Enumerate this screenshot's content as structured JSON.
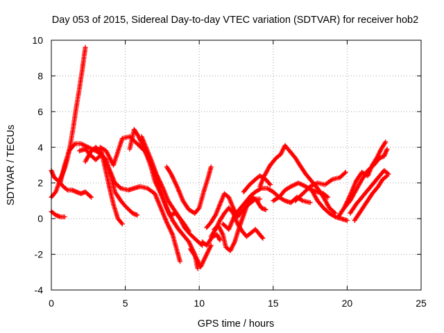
{
  "chart_data": {
    "type": "scatter",
    "title": "Day 053 of 2015, Sidereal Day-to-day VTEC variation (SDTVAR) for receiver hob2",
    "xlabel": "GPS time / hours",
    "ylabel": "SDTVAR / TECUs",
    "xlim": [
      0,
      25
    ],
    "ylim": [
      -4,
      10
    ],
    "xticks": [
      0,
      5,
      10,
      15,
      20,
      25
    ],
    "yticks": [
      -4,
      -2,
      0,
      2,
      4,
      6,
      8,
      10
    ],
    "xtick_labels": [
      "0",
      "5",
      "10",
      "15",
      "20",
      "25"
    ],
    "ytick_labels": [
      "-4",
      "-2",
      "0",
      "2",
      "4",
      "6",
      "8",
      "10"
    ],
    "grid": true,
    "marker": "+",
    "color": "#ff0000",
    "tracks": [
      [
        [
          0.0,
          1.2
        ],
        [
          0.3,
          1.5
        ],
        [
          0.6,
          2.2
        ],
        [
          0.9,
          2.8
        ],
        [
          1.1,
          3.4
        ],
        [
          1.3,
          4.2
        ],
        [
          1.5,
          5.2
        ],
        [
          1.7,
          6.3
        ],
        [
          1.9,
          7.3
        ],
        [
          2.1,
          8.4
        ],
        [
          2.3,
          9.6
        ]
      ],
      [
        [
          0.0,
          0.4
        ],
        [
          0.3,
          0.2
        ],
        [
          0.6,
          0.1
        ],
        [
          0.9,
          0.1
        ]
      ],
      [
        [
          0.0,
          2.7
        ],
        [
          0.2,
          2.3
        ],
        [
          0.5,
          2.1
        ],
        [
          0.8,
          1.8
        ],
        [
          1.1,
          1.6
        ],
        [
          1.4,
          1.6
        ],
        [
          1.7,
          1.5
        ],
        [
          2.0,
          1.4
        ],
        [
          2.3,
          1.5
        ],
        [
          2.7,
          1.2
        ]
      ],
      [
        [
          0.6,
          2.0
        ],
        [
          0.9,
          3.0
        ],
        [
          1.2,
          3.8
        ],
        [
          1.6,
          4.2
        ],
        [
          2.0,
          4.2
        ],
        [
          2.5,
          4.0
        ],
        [
          3.0,
          3.8
        ],
        [
          3.4,
          3.6
        ],
        [
          3.7,
          3.2
        ],
        [
          4.0,
          2.6
        ],
        [
          4.3,
          2.0
        ],
        [
          4.7,
          1.7
        ],
        [
          5.2,
          1.6
        ],
        [
          5.6,
          1.7
        ],
        [
          6.0,
          1.8
        ],
        [
          6.5,
          1.7
        ],
        [
          7.0,
          1.4
        ],
        [
          7.4,
          0.6
        ],
        [
          7.8,
          -0.2
        ],
        [
          8.2,
          -0.9
        ],
        [
          8.5,
          -1.8
        ],
        [
          8.7,
          -2.4
        ]
      ],
      [
        [
          1.9,
          3.8
        ],
        [
          2.3,
          3.9
        ],
        [
          2.6,
          3.6
        ],
        [
          3.0,
          3.3
        ],
        [
          3.4,
          3.6
        ],
        [
          3.7,
          3.3
        ],
        [
          4.0,
          2.5
        ],
        [
          4.3,
          1.5
        ],
        [
          4.7,
          1.0
        ],
        [
          5.0,
          0.7
        ],
        [
          5.5,
          0.3
        ],
        [
          5.8,
          0.2
        ]
      ],
      [
        [
          2.3,
          3.2
        ],
        [
          2.7,
          3.8
        ],
        [
          3.0,
          4.0
        ],
        [
          3.4,
          3.7
        ],
        [
          3.7,
          2.6
        ],
        [
          4.0,
          1.5
        ],
        [
          4.2,
          0.8
        ],
        [
          4.5,
          0.0
        ],
        [
          4.8,
          -0.3
        ]
      ],
      [
        [
          3.3,
          4.0
        ],
        [
          3.7,
          3.8
        ],
        [
          4.2,
          3.0
        ],
        [
          4.8,
          4.5
        ],
        [
          5.3,
          4.6
        ],
        [
          5.8,
          4.2
        ],
        [
          6.3,
          3.8
        ],
        [
          6.7,
          3.2
        ],
        [
          7.1,
          2.4
        ],
        [
          7.4,
          1.5
        ],
        [
          7.7,
          0.8
        ],
        [
          8.0,
          0.2
        ],
        [
          8.4,
          0.3
        ],
        [
          8.9,
          -0.2
        ],
        [
          9.3,
          -0.7
        ]
      ],
      [
        [
          5.3,
          3.9
        ],
        [
          5.6,
          5.0
        ],
        [
          5.9,
          4.6
        ],
        [
          6.3,
          3.9
        ],
        [
          6.7,
          3.0
        ],
        [
          7.0,
          2.1
        ],
        [
          7.4,
          1.4
        ],
        [
          7.8,
          0.6
        ],
        [
          8.2,
          -0.1
        ],
        [
          8.6,
          -0.6
        ],
        [
          9.0,
          -1.0
        ],
        [
          9.3,
          -1.3
        ],
        [
          9.7,
          -2.0
        ],
        [
          9.9,
          -2.8
        ]
      ],
      [
        [
          6.1,
          4.6
        ],
        [
          6.4,
          4.0
        ],
        [
          6.7,
          3.4
        ],
        [
          7.1,
          2.5
        ],
        [
          7.5,
          1.8
        ],
        [
          7.9,
          1.0
        ],
        [
          8.3,
          0.5
        ],
        [
          8.7,
          0.0
        ],
        [
          9.0,
          -0.5
        ],
        [
          9.3,
          -0.8
        ],
        [
          9.8,
          -1.2
        ],
        [
          10.2,
          -1.5
        ]
      ],
      [
        [
          7.8,
          2.9
        ],
        [
          8.1,
          2.5
        ],
        [
          8.5,
          1.8
        ],
        [
          8.9,
          1.0
        ],
        [
          9.3,
          0.5
        ],
        [
          9.7,
          0.3
        ],
        [
          10.0,
          0.6
        ],
        [
          10.3,
          1.5
        ],
        [
          10.6,
          2.3
        ],
        [
          10.8,
          2.9
        ]
      ],
      [
        [
          9.4,
          -1.7
        ],
        [
          9.8,
          -2.2
        ],
        [
          10.1,
          -2.7
        ],
        [
          10.5,
          -2.0
        ],
        [
          10.8,
          -1.5
        ]
      ],
      [
        [
          10.2,
          -1.3
        ],
        [
          10.5,
          -1.5
        ],
        [
          10.9,
          -1.0
        ],
        [
          11.2,
          -0.9
        ],
        [
          11.4,
          -1.2
        ]
      ],
      [
        [
          10.5,
          -0.5
        ],
        [
          10.8,
          -0.2
        ],
        [
          11.1,
          0.2
        ],
        [
          11.4,
          0.8
        ],
        [
          11.7,
          1.4
        ],
        [
          12.0,
          1.2
        ],
        [
          12.3,
          0.6
        ],
        [
          12.6,
          0.1
        ],
        [
          12.9,
          0.4
        ],
        [
          13.2,
          0.7
        ],
        [
          13.5,
          0.9
        ],
        [
          13.8,
          1.1
        ],
        [
          14.1,
          1.1
        ]
      ],
      [
        [
          10.8,
          -1.0
        ],
        [
          11.1,
          -0.6
        ],
        [
          11.4,
          -0.1
        ],
        [
          11.7,
          0.3
        ],
        [
          12.0,
          0.6
        ],
        [
          12.3,
          0.3
        ],
        [
          12.6,
          -0.3
        ],
        [
          12.9,
          -0.7
        ],
        [
          13.2,
          -1.0
        ],
        [
          13.5,
          -0.8
        ],
        [
          13.8,
          -0.6
        ],
        [
          14.1,
          -0.9
        ],
        [
          14.3,
          -1.1
        ]
      ],
      [
        [
          11.0,
          -0.6
        ],
        [
          11.3,
          -0.4
        ],
        [
          11.6,
          -0.9
        ],
        [
          11.8,
          -1.6
        ],
        [
          12.1,
          -1.8
        ],
        [
          12.4,
          -1.3
        ],
        [
          12.7,
          -0.5
        ],
        [
          13.0,
          0.2
        ],
        [
          13.3,
          0.9
        ],
        [
          13.6,
          1.2
        ],
        [
          13.9,
          1.0
        ],
        [
          14.2,
          0.6
        ],
        [
          14.5,
          0.5
        ]
      ],
      [
        [
          11.6,
          -0.3
        ],
        [
          12.0,
          -0.6
        ],
        [
          12.4,
          0.2
        ],
        [
          12.8,
          0.6
        ],
        [
          13.2,
          1.0
        ],
        [
          13.5,
          1.3
        ],
        [
          13.8,
          1.5
        ],
        [
          14.2,
          1.7
        ],
        [
          14.6,
          1.7
        ],
        [
          15.0,
          1.5
        ],
        [
          15.4,
          1.2
        ],
        [
          15.8,
          1.0
        ],
        [
          16.2,
          0.9
        ],
        [
          16.6,
          1.2
        ],
        [
          17.0,
          1.0
        ],
        [
          17.5,
          0.9
        ]
      ],
      [
        [
          13.0,
          1.5
        ],
        [
          13.4,
          1.9
        ],
        [
          13.8,
          2.2
        ],
        [
          14.1,
          2.4
        ],
        [
          14.5,
          2.2
        ],
        [
          14.8,
          1.9
        ]
      ],
      [
        [
          14.1,
          1.8
        ],
        [
          14.4,
          2.4
        ],
        [
          14.8,
          3.0
        ],
        [
          15.2,
          3.4
        ],
        [
          15.5,
          3.6
        ],
        [
          15.8,
          4.1
        ],
        [
          16.1,
          3.8
        ],
        [
          16.5,
          3.4
        ],
        [
          16.8,
          3.0
        ],
        [
          17.2,
          2.5
        ],
        [
          17.6,
          2.1
        ],
        [
          18.0,
          1.7
        ],
        [
          18.4,
          1.2
        ],
        [
          18.8,
          0.6
        ],
        [
          19.2,
          0.3
        ]
      ],
      [
        [
          15.0,
          1.0
        ],
        [
          15.4,
          1.2
        ],
        [
          15.8,
          1.6
        ],
        [
          16.2,
          1.8
        ],
        [
          16.7,
          2.0
        ],
        [
          17.2,
          1.8
        ],
        [
          17.6,
          1.6
        ],
        [
          18.0,
          1.5
        ],
        [
          18.4,
          1.4
        ],
        [
          18.7,
          1.2
        ]
      ],
      [
        [
          16.5,
          1.0
        ],
        [
          17.0,
          1.4
        ],
        [
          17.5,
          1.8
        ],
        [
          18.0,
          2.0
        ],
        [
          18.5,
          1.9
        ],
        [
          19.0,
          2.2
        ],
        [
          19.5,
          2.3
        ],
        [
          19.9,
          2.6
        ]
      ],
      [
        [
          17.6,
          1.6
        ],
        [
          18.0,
          1.0
        ],
        [
          18.4,
          0.6
        ],
        [
          18.8,
          0.3
        ],
        [
          19.2,
          0.1
        ],
        [
          19.6,
          0.0
        ],
        [
          20.0,
          -0.1
        ]
      ],
      [
        [
          19.4,
          0.1
        ],
        [
          19.8,
          0.6
        ],
        [
          20.2,
          1.3
        ],
        [
          20.6,
          2.1
        ],
        [
          21.0,
          2.6
        ],
        [
          21.4,
          2.4
        ],
        [
          21.7,
          3.0
        ],
        [
          22.0,
          3.4
        ],
        [
          22.3,
          3.9
        ],
        [
          22.6,
          4.3
        ]
      ],
      [
        [
          19.8,
          0.6
        ],
        [
          20.2,
          1.0
        ],
        [
          20.6,
          1.6
        ],
        [
          21.0,
          2.2
        ],
        [
          21.4,
          2.7
        ],
        [
          21.8,
          3.0
        ],
        [
          22.2,
          3.4
        ],
        [
          22.5,
          3.5
        ],
        [
          22.7,
          3.9
        ]
      ],
      [
        [
          20.2,
          0.3
        ],
        [
          20.6,
          0.8
        ],
        [
          21.0,
          1.2
        ],
        [
          21.4,
          1.6
        ],
        [
          21.8,
          2.0
        ],
        [
          22.2,
          2.4
        ],
        [
          22.5,
          2.7
        ],
        [
          22.8,
          2.5
        ]
      ],
      [
        [
          20.5,
          -0.1
        ],
        [
          20.9,
          0.4
        ],
        [
          21.3,
          0.9
        ],
        [
          21.7,
          1.4
        ],
        [
          22.1,
          1.8
        ],
        [
          22.4,
          2.2
        ],
        [
          22.7,
          2.4
        ]
      ]
    ]
  }
}
